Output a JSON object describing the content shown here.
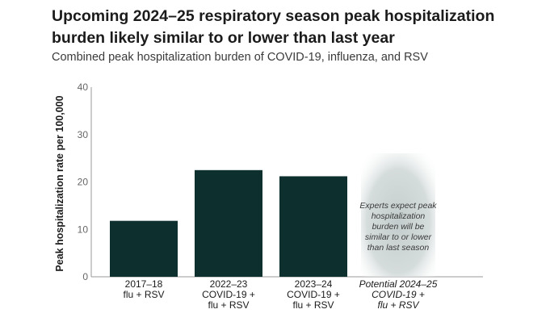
{
  "title_line1": "Upcoming 2024–25 respiratory season peak hospitalization",
  "title_line2": "burden likely similar to or lower than last year",
  "subtitle": "Combined peak hospitalization burden of COVID-19, influenza, and RSV",
  "colors": {
    "bar": "#0d2f2e",
    "projection": "#c8d0d0",
    "axis": "#999999"
  },
  "chart_data": {
    "type": "bar",
    "ylabel": "Peak hospitalization rate per 100,000",
    "ylim": [
      0,
      40
    ],
    "yticks": [
      "0",
      "10",
      "20",
      "30",
      "40"
    ],
    "categories": [
      [
        "2017–18",
        "flu + RSV"
      ],
      [
        "2022–23",
        "COVID-19 +",
        "flu + RSV"
      ],
      [
        "2023–24",
        "COVID-19 +",
        "flu + RSV"
      ],
      [
        "Potential 2024–25",
        "COVID-19 +",
        "flu + RSV"
      ]
    ],
    "values": [
      11.8,
      22.5,
      21.2,
      null
    ],
    "projection_annotation": [
      "Experts expect peak",
      "hospitalization",
      "burden will be",
      "similar to or lower",
      "than last season"
    ]
  }
}
